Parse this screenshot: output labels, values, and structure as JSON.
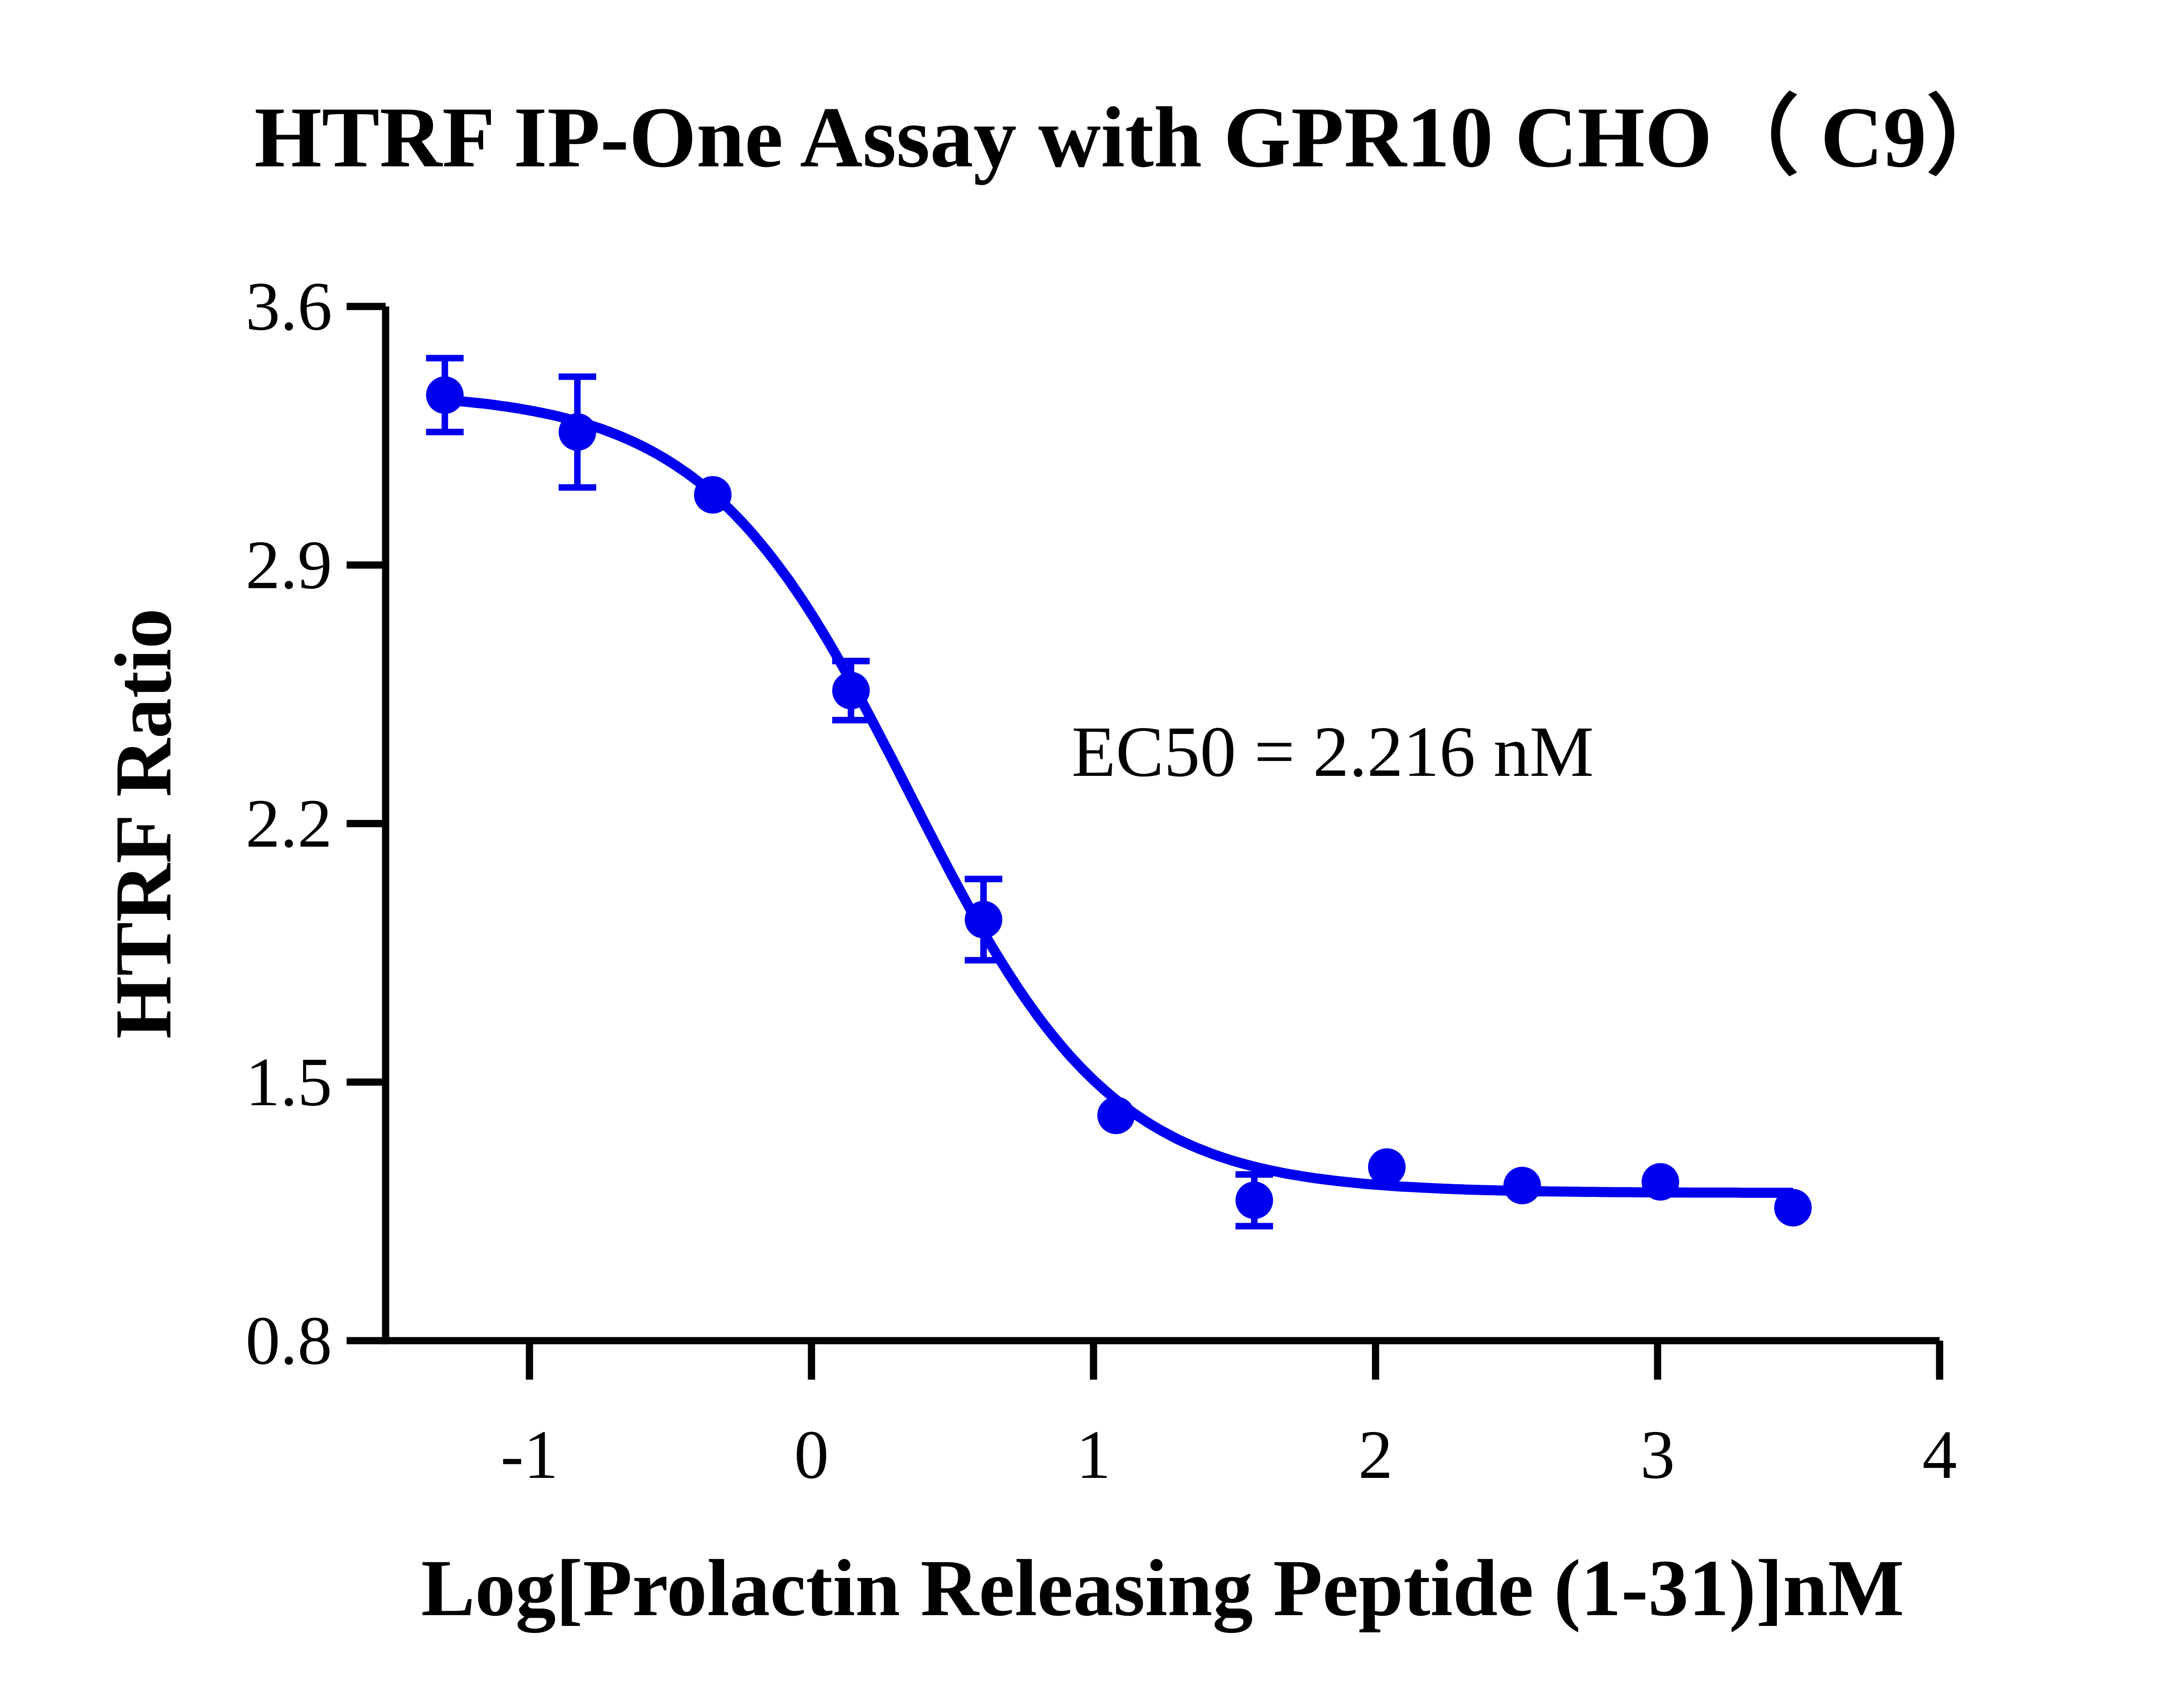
{
  "chart_data": {
    "type": "scatter",
    "title": "HTRF IP-One Assay with GPR10 CHO（ C9）",
    "xlabel": "Log[Prolactin Releasing Peptide (1-31)]nM",
    "ylabel": "HTRF Ratio",
    "xlim": [
      -1.51,
      4
    ],
    "ylim": [
      0.8,
      3.6
    ],
    "xticks": [
      "-1",
      "0",
      "1",
      "2",
      "3",
      "4"
    ],
    "yticks": [
      "0.8",
      "1.5",
      "2.2",
      "2.9",
      "3.6"
    ],
    "grid": false,
    "color": "#0000ee",
    "annotation": "EC50 = 2.216 nM",
    "points": [
      {
        "x": -1.3,
        "y": 3.36,
        "err": 0.1
      },
      {
        "x": -0.83,
        "y": 3.26,
        "err": 0.15
      },
      {
        "x": -0.35,
        "y": 3.09,
        "err": 0.02
      },
      {
        "x": 0.14,
        "y": 2.56,
        "err": 0.08
      },
      {
        "x": 0.61,
        "y": 1.94,
        "err": 0.11
      },
      {
        "x": 1.08,
        "y": 1.41,
        "err": 0.02
      },
      {
        "x": 1.57,
        "y": 1.18,
        "err": 0.07
      },
      {
        "x": 2.04,
        "y": 1.27,
        "err": 0.02
      },
      {
        "x": 2.52,
        "y": 1.22,
        "err": 0.02
      },
      {
        "x": 3.01,
        "y": 1.23,
        "err": 0.02
      },
      {
        "x": 3.48,
        "y": 1.16,
        "err": 0.02
      }
    ],
    "fit": {
      "model": "4PL",
      "top": 3.37,
      "bottom": 1.2,
      "logEC50": 0.3456,
      "hill": -1.2
    }
  }
}
